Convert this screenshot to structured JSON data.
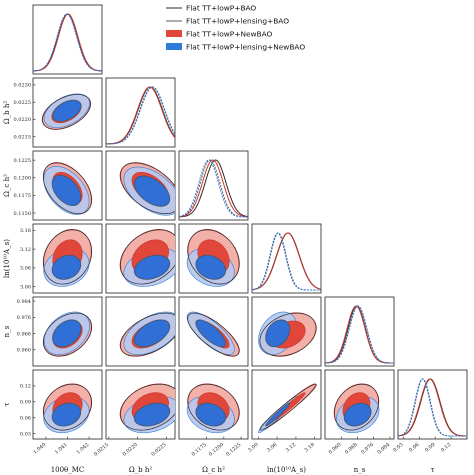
{
  "chart_data": {
    "type": "triangle",
    "colors": {
      "bao_line": "#2b2b2b",
      "lensing_line": "#5a5a5a",
      "newbao_fill": "#e0463a",
      "newbao_fill_light": "#f3b0a9",
      "lensing_newbao_fill": "#2f6fd6",
      "lensing_newbao_fill_light": "#b6c8ee",
      "red_line": "#c9372c",
      "blue_line": "#2e7bd9"
    },
    "legend": {
      "placement": "top-right",
      "entries": [
        {
          "label": "Flat TT+lowP+BAO",
          "kind": "line",
          "color": "#2b2b2b"
        },
        {
          "label": "Flat TT+lowP+lensing+BAO",
          "kind": "line",
          "color": "#5a5a5a"
        },
        {
          "label": "Flat TT+lowP+NewBAO",
          "kind": "box",
          "color": "#e0463a"
        },
        {
          "label": "Flat TT+lowP+lensing+NewBAO",
          "kind": "box",
          "color": "#2e7bd9"
        }
      ]
    },
    "parameters": [
      {
        "label": "100θ_MC",
        "xlabel": "100θ_MC",
        "ylabel": "",
        "range": [
          1.0394,
          1.0426
        ],
        "ticks": [
          "1.040",
          "1.041",
          "1.042"
        ],
        "tick_values": [
          1.04,
          1.041,
          1.042
        ]
      },
      {
        "label": "Ω_b h²",
        "xlabel": "Ω_b h²",
        "ylabel": "Ω_b h²",
        "range": [
          0.02145,
          0.02265
        ],
        "ticks": [
          "0.0215",
          "0.0220",
          "0.0225"
        ],
        "tick_values": [
          0.0215,
          0.022,
          0.0225
        ],
        "yticks": [
          "0.0230",
          "0.0225",
          "0.0220",
          "0.0215"
        ],
        "ytick_values": [
          0.023,
          0.0225,
          0.022,
          0.0215
        ],
        "yrange": [
          0.0212,
          0.0232
        ]
      },
      {
        "label": "Ω_c h²",
        "xlabel": "Ω_c h²",
        "ylabel": "Ω_c h²",
        "range": [
          0.1135,
          0.1235
        ],
        "ticks": [
          "0.1175",
          "0.1200",
          "0.1225"
        ],
        "tick_values": [
          0.1175,
          0.12,
          0.1225
        ],
        "yticks": [
          "0.1225",
          "0.1200",
          "0.1175",
          "0.1150"
        ],
        "ytick_values": [
          0.1225,
          0.12,
          0.1175,
          0.115
        ],
        "yrange": [
          0.114,
          0.1238
        ]
      },
      {
        "label": "ln(10^10 A_s)",
        "xlabel": "ln(10¹⁰A_s)",
        "ylabel": "ln(10¹⁰A_s)",
        "range": [
          2.98,
          3.2
        ],
        "ticks": [
          "3.00",
          "3.06",
          "3.12",
          "3.18"
        ],
        "tick_values": [
          3.0,
          3.06,
          3.12,
          3.18
        ],
        "yticks": [
          "3.18",
          "3.12",
          "3.06",
          "3.00"
        ],
        "ytick_values": [
          3.18,
          3.12,
          3.06,
          3.0
        ]
      },
      {
        "label": "n_s",
        "xlabel": "n_s",
        "ylabel": "n_s",
        "range": [
          0.952,
          0.986
        ],
        "ticks": [
          "0.960",
          "0.968",
          "0.976",
          "0.984"
        ],
        "tick_values": [
          0.96,
          0.968,
          0.976,
          0.984
        ],
        "yticks": [
          "0.984",
          "0.976",
          "0.968",
          "0.960"
        ],
        "ytick_values": [
          0.984,
          0.976,
          0.968,
          0.96
        ]
      },
      {
        "label": "τ",
        "xlabel": "τ",
        "ylabel": "τ",
        "range": [
          0.02,
          0.15
        ],
        "ticks": [
          "0.03",
          "0.06",
          "0.09",
          "0.12"
        ],
        "tick_values": [
          0.03,
          0.06,
          0.09,
          0.12
        ],
        "yticks": [
          "0.12",
          "0.09",
          "0.06",
          "0.03"
        ],
        "ytick_values": [
          0.12,
          0.09,
          0.06,
          0.03
        ]
      }
    ],
    "marginals": [
      {
        "param": 0,
        "series": [
          {
            "kind": "bao",
            "mean": 1.041,
            "sigma": 0.00045
          },
          {
            "kind": "lensing",
            "mean": 1.041,
            "sigma": 0.00045
          },
          {
            "kind": "red",
            "mean": 1.04103,
            "sigma": 0.00045
          },
          {
            "kind": "blue",
            "mean": 1.04097,
            "sigma": 0.00045
          }
        ]
      },
      {
        "param": 1,
        "series": [
          {
            "kind": "bao",
            "mean": 0.02222,
            "sigma": 0.00021
          },
          {
            "kind": "lensing",
            "mean": 0.02226,
            "sigma": 0.00021
          },
          {
            "kind": "red",
            "mean": 0.02221,
            "sigma": 0.00021
          },
          {
            "kind": "blue",
            "mean": 0.02225,
            "sigma": 0.00021
          }
        ]
      },
      {
        "param": 2,
        "series": [
          {
            "kind": "bao",
            "mean": 0.1188,
            "sigma": 0.0015
          },
          {
            "kind": "lensing",
            "mean": 0.118,
            "sigma": 0.0014
          },
          {
            "kind": "red",
            "mean": 0.1184,
            "sigma": 0.0015
          },
          {
            "kind": "blue",
            "mean": 0.1178,
            "sigma": 0.0014
          }
        ]
      },
      {
        "param": 3,
        "series": [
          {
            "kind": "bao",
            "mean": 3.095,
            "sigma": 0.036
          },
          {
            "kind": "lensing",
            "mean": 3.064,
            "sigma": 0.025
          },
          {
            "kind": "red",
            "mean": 3.094,
            "sigma": 0.036
          },
          {
            "kind": "blue",
            "mean": 3.062,
            "sigma": 0.025
          }
        ]
      },
      {
        "param": 4,
        "series": [
          {
            "kind": "bao",
            "mean": 0.9676,
            "sigma": 0.0043
          },
          {
            "kind": "lensing",
            "mean": 0.9683,
            "sigma": 0.0043
          },
          {
            "kind": "red",
            "mean": 0.9673,
            "sigma": 0.0044
          },
          {
            "kind": "blue",
            "mean": 0.9681,
            "sigma": 0.0044
          }
        ]
      },
      {
        "param": 5,
        "series": [
          {
            "kind": "bao",
            "mean": 0.081,
            "sigma": 0.018
          },
          {
            "kind": "lensing",
            "mean": 0.067,
            "sigma": 0.014
          },
          {
            "kind": "red",
            "mean": 0.08,
            "sigma": 0.018
          },
          {
            "kind": "blue",
            "mean": 0.066,
            "sigma": 0.014
          }
        ]
      }
    ],
    "pairs": [
      {
        "x": 0,
        "y": 1,
        "red": {
          "cx": 1.04095,
          "cy": 0.02222,
          "sx": 0.00045,
          "sy": 0.00021,
          "rho": 0.45
        },
        "blue": {
          "cx": 1.04097,
          "cy": 0.02225,
          "sx": 0.00043,
          "sy": 0.0002,
          "rho": 0.45
        }
      },
      {
        "x": 0,
        "y": 2,
        "red": {
          "cx": 1.041,
          "cy": 0.1185,
          "sx": 0.00045,
          "sy": 0.0015,
          "rho": -0.45
        },
        "blue": {
          "cx": 1.04095,
          "cy": 0.1182,
          "sx": 0.00043,
          "sy": 0.0014,
          "rho": -0.45
        }
      },
      {
        "x": 1,
        "y": 2,
        "red": {
          "cx": 0.02222,
          "cy": 0.1185,
          "sx": 0.00021,
          "sy": 0.0015,
          "rho": -0.5
        },
        "blue": {
          "cx": 0.02225,
          "cy": 0.1181,
          "sx": 0.0002,
          "sy": 0.0014,
          "rho": -0.5
        }
      },
      {
        "x": 0,
        "y": 3,
        "red": {
          "cx": 1.041,
          "cy": 3.095,
          "sx": 0.00045,
          "sy": 0.036,
          "rho": 0.2
        },
        "blue": {
          "cx": 1.04095,
          "cy": 3.062,
          "sx": 0.00043,
          "sy": 0.025,
          "rho": 0.2
        }
      },
      {
        "x": 1,
        "y": 3,
        "red": {
          "cx": 0.02222,
          "cy": 3.095,
          "sx": 0.00021,
          "sy": 0.036,
          "rho": 0.3
        },
        "blue": {
          "cx": 0.02225,
          "cy": 3.062,
          "sx": 0.0002,
          "sy": 0.025,
          "rho": 0.3
        }
      },
      {
        "x": 2,
        "y": 3,
        "red": {
          "cx": 0.1185,
          "cy": 3.095,
          "sx": 0.0015,
          "sy": 0.036,
          "rho": -0.25
        },
        "blue": {
          "cx": 0.1181,
          "cy": 3.062,
          "sx": 0.0014,
          "sy": 0.025,
          "rho": -0.25
        }
      },
      {
        "x": 0,
        "y": 4,
        "red": {
          "cx": 1.041,
          "cy": 0.9675,
          "sx": 0.00045,
          "sy": 0.0044,
          "rho": 0.35
        },
        "blue": {
          "cx": 1.04097,
          "cy": 0.9681,
          "sx": 0.00043,
          "sy": 0.0043,
          "rho": 0.35
        }
      },
      {
        "x": 1,
        "y": 4,
        "red": {
          "cx": 0.02222,
          "cy": 0.9675,
          "sx": 0.00021,
          "sy": 0.0044,
          "rho": 0.5
        },
        "blue": {
          "cx": 0.02225,
          "cy": 0.9681,
          "sx": 0.0002,
          "sy": 0.0043,
          "rho": 0.5
        }
      },
      {
        "x": 2,
        "y": 4,
        "red": {
          "cx": 0.1185,
          "cy": 0.9675,
          "sx": 0.0015,
          "sy": 0.0044,
          "rho": -0.75
        },
        "blue": {
          "cx": 0.1181,
          "cy": 0.9681,
          "sx": 0.0014,
          "sy": 0.0043,
          "rho": -0.75
        }
      },
      {
        "x": 3,
        "y": 4,
        "red": {
          "cx": 3.095,
          "cy": 0.9675,
          "sx": 0.036,
          "sy": 0.0044,
          "rho": 0.3
        },
        "blue": {
          "cx": 3.062,
          "cy": 0.9681,
          "sx": 0.025,
          "sy": 0.0043,
          "rho": 0.3
        }
      },
      {
        "x": 0,
        "y": 5,
        "red": {
          "cx": 1.041,
          "cy": 0.08,
          "sx": 0.00045,
          "sy": 0.018,
          "rho": 0.2
        },
        "blue": {
          "cx": 1.04095,
          "cy": 0.066,
          "sx": 0.00043,
          "sy": 0.014,
          "rho": 0.2
        }
      },
      {
        "x": 1,
        "y": 5,
        "red": {
          "cx": 0.02222,
          "cy": 0.08,
          "sx": 0.00021,
          "sy": 0.018,
          "rho": 0.3
        },
        "blue": {
          "cx": 0.02225,
          "cy": 0.066,
          "sx": 0.0002,
          "sy": 0.014,
          "rho": 0.3
        }
      },
      {
        "x": 2,
        "y": 5,
        "red": {
          "cx": 0.1185,
          "cy": 0.08,
          "sx": 0.0015,
          "sy": 0.018,
          "rho": -0.25
        },
        "blue": {
          "cx": 0.1181,
          "cy": 0.066,
          "sx": 0.0014,
          "sy": 0.014,
          "rho": -0.25
        }
      },
      {
        "x": 3,
        "y": 5,
        "red": {
          "cx": 3.095,
          "cy": 0.08,
          "sx": 0.036,
          "sy": 0.018,
          "rho": 0.97
        },
        "blue": {
          "cx": 3.062,
          "cy": 0.066,
          "sx": 0.025,
          "sy": 0.014,
          "rho": 0.97
        }
      },
      {
        "x": 4,
        "y": 5,
        "red": {
          "cx": 0.9675,
          "cy": 0.08,
          "sx": 0.0044,
          "sy": 0.018,
          "rho": 0.25
        },
        "blue": {
          "cx": 0.9681,
          "cy": 0.066,
          "sx": 0.0043,
          "sy": 0.014,
          "rho": 0.25
        }
      }
    ]
  }
}
